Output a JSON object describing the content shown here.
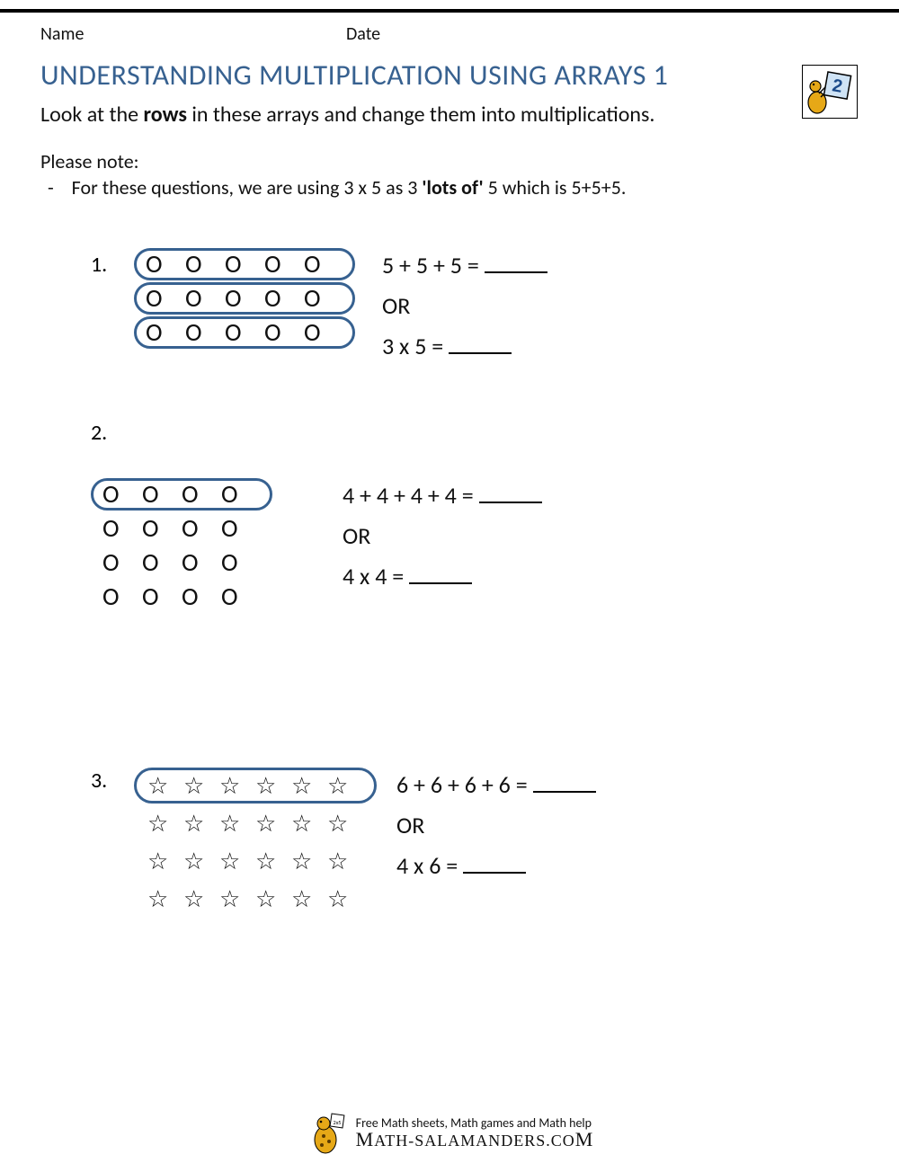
{
  "header": {
    "name_label": "Name",
    "date_label": "Date",
    "grade_badge": "2"
  },
  "title": "UNDERSTANDING MULTIPLICATION USING ARRAYS 1",
  "instruction_pre": "Look at the ",
  "instruction_bold": "rows",
  "instruction_post": " in these arrays and change them into multiplications.",
  "note_head": "Please note:",
  "note_dash": "-",
  "note_pre": "For these questions, we are using 3 x 5 as 3 ",
  "note_bold": "'lots of'",
  "note_post": " 5 which is 5+5+5.",
  "problems": [
    {
      "num": "1.",
      "symbol": "O",
      "rows": 3,
      "cols": 5,
      "circled_rows": [
        0,
        1,
        2
      ],
      "eq1": "5 + 5 + 5 =",
      "or": "OR",
      "eq2": "3 x 5 ="
    },
    {
      "num": "2.",
      "symbol": "O",
      "rows": 4,
      "cols": 4,
      "circled_rows": [
        0
      ],
      "eq1": "4 + 4 + 4 + 4 =",
      "or": "OR",
      "eq2": "4 x 4 ="
    },
    {
      "num": "3.",
      "symbol": "star",
      "rows": 4,
      "cols": 6,
      "circled_rows": [
        0
      ],
      "eq1": "6 + 6 + 6 + 6 =",
      "or": "OR",
      "eq2": "4 x 6 ="
    }
  ],
  "footer": {
    "tagline": "Free Math sheets, Math games and Math help",
    "site_pre": "ATH-SALAMANDERS.CO",
    "site_first": "",
    "site_last": ""
  },
  "colors": {
    "title": "#376190",
    "circle": "#376190",
    "text": "#111111",
    "salamander": "#e6a817"
  }
}
